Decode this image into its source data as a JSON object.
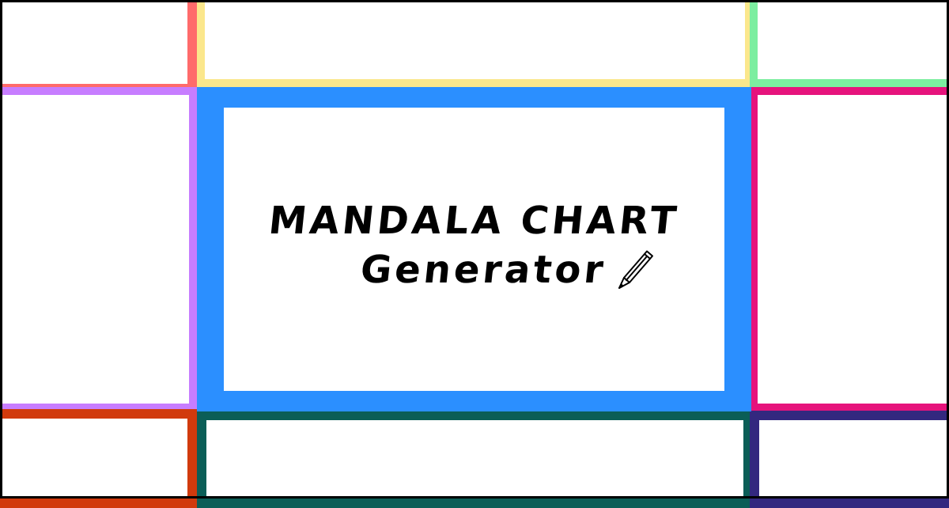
{
  "title": {
    "line1": "MANDALA CHART",
    "line2": "Generator"
  },
  "icons": {
    "title_icon": "pencil-icon"
  },
  "colors": {
    "top_left": "#ff6b6b",
    "top_middle": "#fbe78c",
    "top_right": "#7ceea0",
    "middle_left": "#c77dff",
    "center": "#2b8fff",
    "middle_right": "#e6137c",
    "bottom_left": "#d13a0d",
    "bottom_middle": "#0b5e57",
    "bottom_right": "#33287f"
  }
}
